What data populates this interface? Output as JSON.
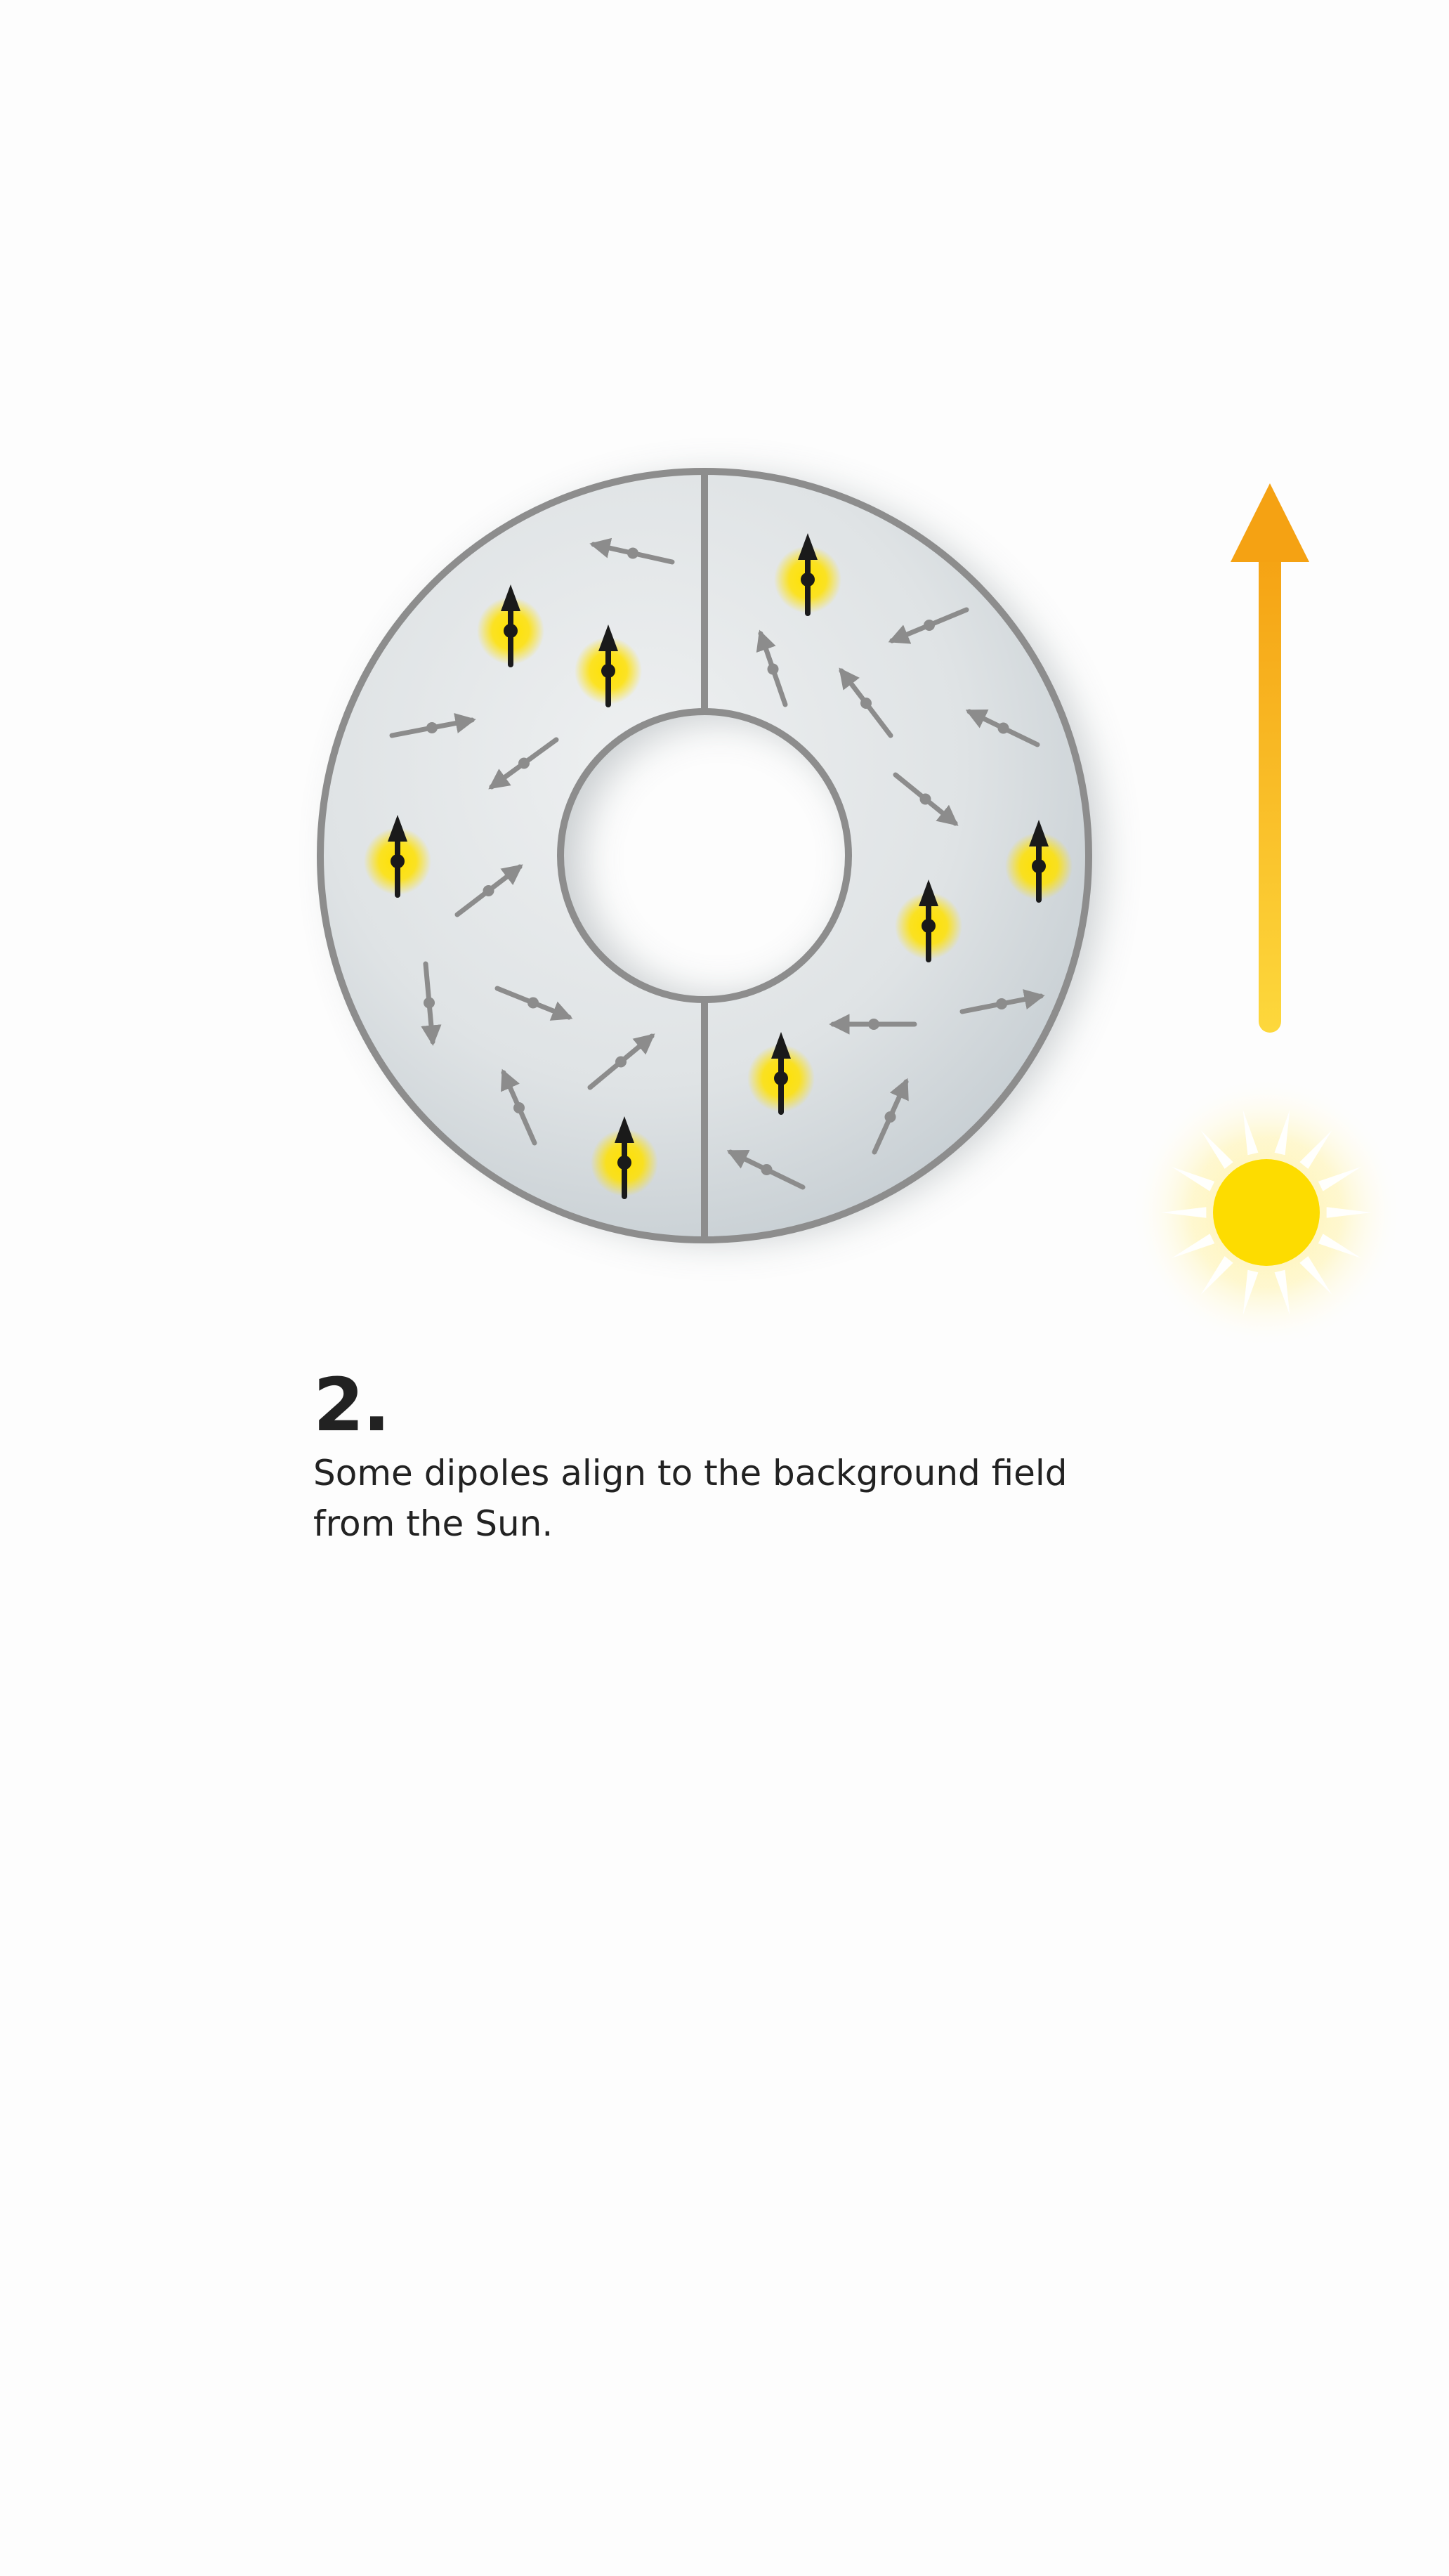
{
  "step": {
    "number": "2.",
    "text": "Some dipoles align to the background field from the Sun."
  },
  "colors": {
    "ring_fill": "#dfe3e5",
    "ring_stroke": "#8d8d8d",
    "random_dipole": "#8c8c8c",
    "aligned_dipole": "#1a1a1a",
    "aligned_glow": "#ffe100",
    "field_arrow_top": "#f5a213",
    "field_arrow_bottom": "#fdd83c",
    "sun": "#fddc00"
  },
  "icons": {
    "sun": "sun-icon",
    "field_arrow": "magnetic-field-arrow"
  }
}
